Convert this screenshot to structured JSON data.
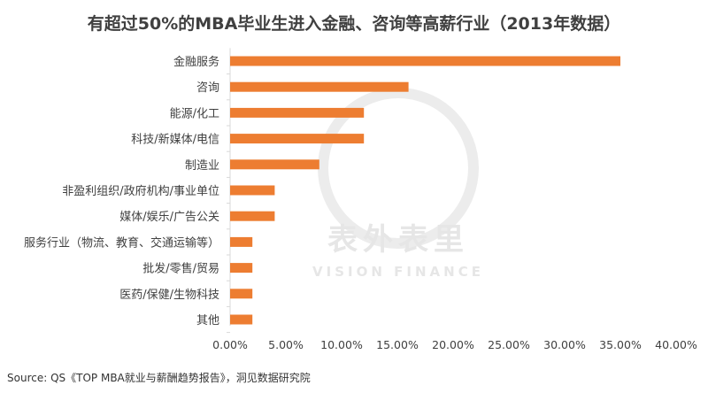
{
  "colors": {
    "bar": "#ed7d31",
    "title": "#404040",
    "label": "#404040",
    "axis": "#d9d9d9",
    "watermark": "#bfbfbf"
  },
  "watermark": {
    "chinese": "表外表里",
    "english": "VISION FINANCE"
  },
  "chart_data": {
    "type": "bar",
    "orientation": "horizontal",
    "title": "有超过50%的MBA毕业生进入金融、咨询等高薪行业（2013年数据）",
    "categories": [
      "金融服务",
      "咨询",
      "能源/化工",
      "科技/新媒体/电信",
      "制造业",
      "非盈利组织/政府机构/事业单位",
      "媒体/娱乐/广告公关",
      "服务行业（物流、教育、交通运输等）",
      "批发/零售/贸易",
      "医药/保健/生物科技",
      "其他"
    ],
    "values": [
      35.0,
      16.0,
      12.0,
      12.0,
      8.0,
      4.0,
      4.0,
      2.0,
      2.0,
      2.0,
      2.0
    ],
    "x_ticks": [
      "0.00%",
      "5.00%",
      "10.00%",
      "15.00%",
      "20.00%",
      "25.00%",
      "30.00%",
      "35.00%",
      "40.00%"
    ],
    "xlim": [
      0,
      40
    ],
    "grid": false,
    "legend": "none"
  },
  "source": "Source: QS《TOP MBA就业与薪酬趋势报告》，洞见数据研究院"
}
